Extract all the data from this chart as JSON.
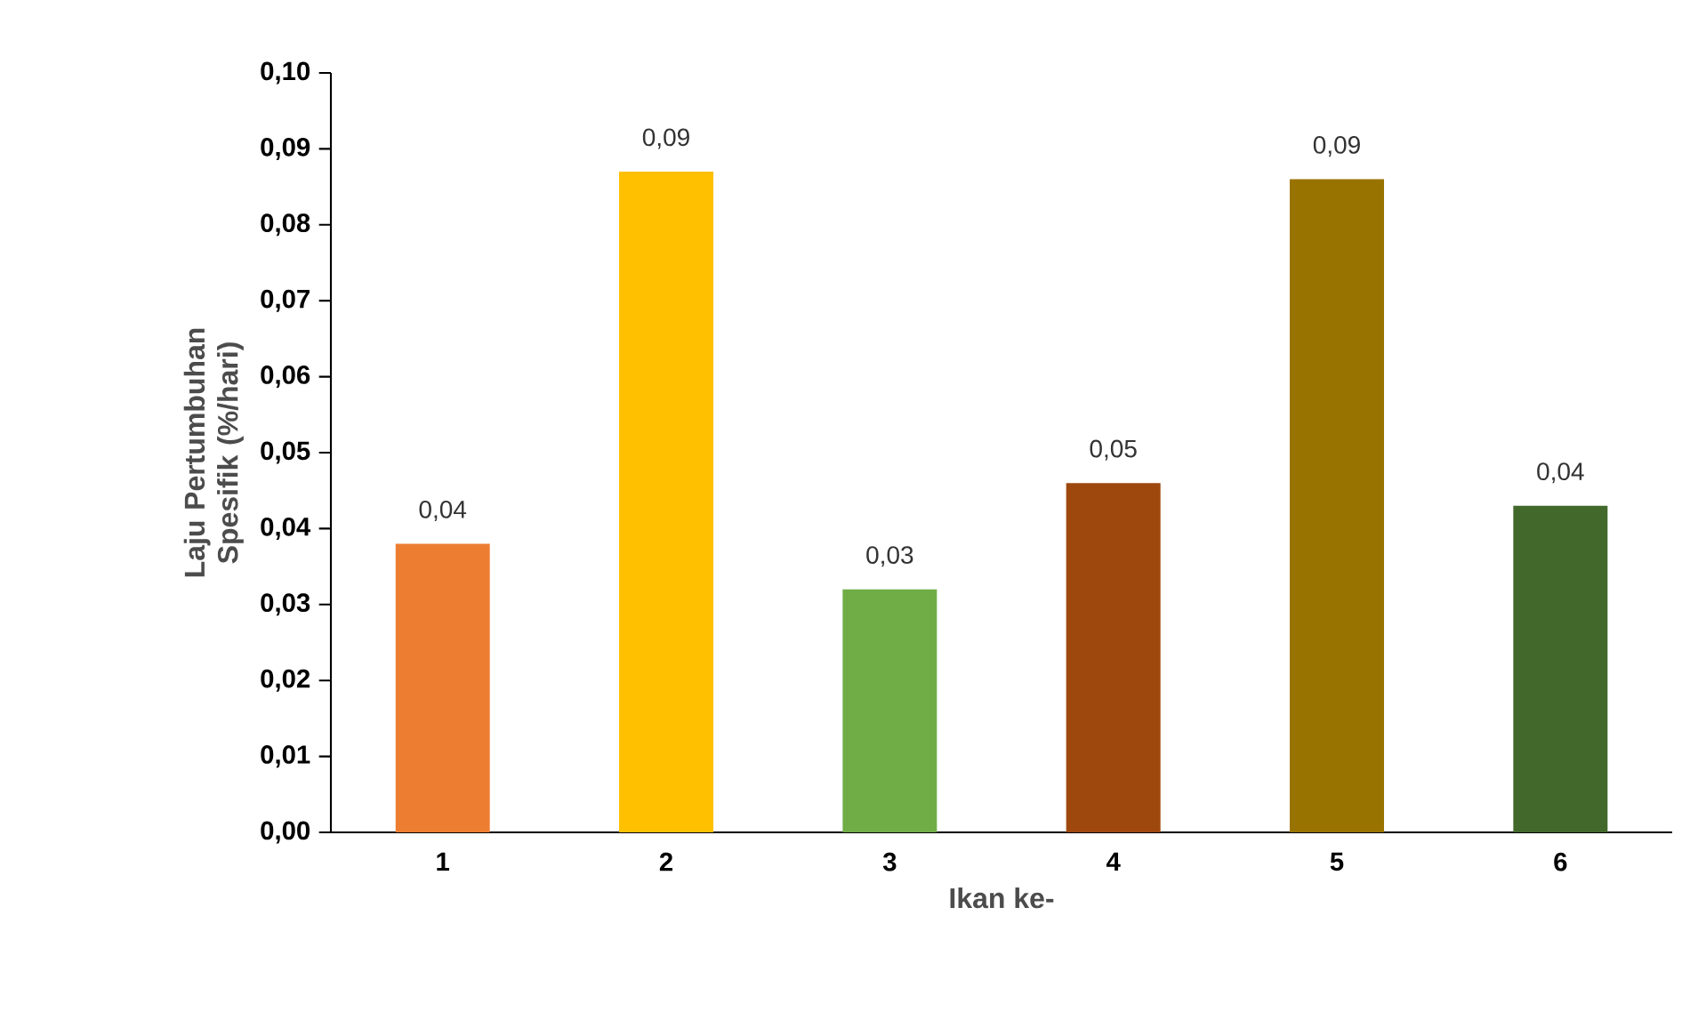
{
  "chart_data": {
    "type": "bar",
    "xlabel": "Ikan ke-",
    "ylabel": "Laju Pertumbuhan Spesifik (%/hari)",
    "categories": [
      "1",
      "2",
      "3",
      "4",
      "5",
      "6"
    ],
    "values": [
      0.038,
      0.087,
      0.032,
      0.046,
      0.086,
      0.043
    ],
    "value_labels": [
      "0,04",
      "0,09",
      "0,03",
      "0,05",
      "0,09",
      "0,04"
    ],
    "colors": [
      "#ed7d31",
      "#ffc000",
      "#70ad47",
      "#9e480e",
      "#997300",
      "#43682b"
    ],
    "ylim": [
      0,
      0.1
    ],
    "yticks": [
      {
        "value": 0,
        "label": "0,00"
      },
      {
        "value": 0.01,
        "label": "0,01"
      },
      {
        "value": 0.02,
        "label": "0,02"
      },
      {
        "value": 0.03,
        "label": "0,03"
      },
      {
        "value": 0.04,
        "label": "0,04"
      },
      {
        "value": 0.05,
        "label": "0,05"
      },
      {
        "value": 0.06,
        "label": "0,06"
      },
      {
        "value": 0.07,
        "label": "0,07"
      },
      {
        "value": 0.08,
        "label": "0,08"
      },
      {
        "value": 0.09,
        "label": "0,09"
      },
      {
        "value": 0.1,
        "label": "0,10"
      }
    ],
    "grid": false
  }
}
